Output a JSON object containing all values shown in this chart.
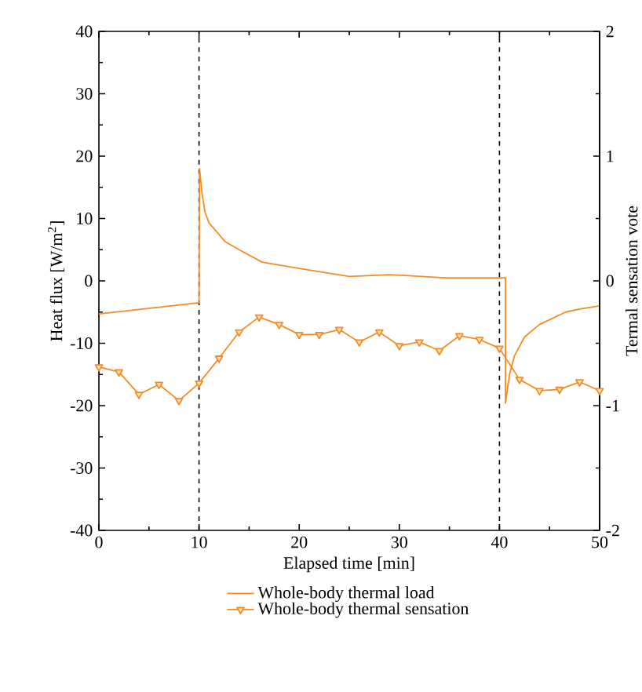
{
  "chart_data": {
    "type": "line",
    "xlabel": "Elapsed time [min]",
    "ylabel": "Heat flux [W/m$^{2}$]",
    "y2label": "Termal sensation vote",
    "xlim": [
      0,
      50
    ],
    "xticks": [
      0,
      10,
      20,
      30,
      40,
      50
    ],
    "ylim": [
      -40,
      40
    ],
    "yticks": [
      -40,
      -30,
      -20,
      -10,
      0,
      10,
      20,
      30,
      40
    ],
    "y2lim": [
      -2,
      2
    ],
    "y2ticks": [
      -2,
      -1,
      0,
      1,
      2
    ],
    "legend": "bottom",
    "grid": false,
    "ref_lines": [
      {
        "axis": "x",
        "value": 10,
        "color": "#000000",
        "line_style": "dashed"
      },
      {
        "axis": "x",
        "value": 40,
        "color": "#000000",
        "line_style": "dashed"
      }
    ],
    "series": [
      {
        "name": "Whole-body thermal load",
        "color": "#f28c28",
        "marker": "none",
        "line_style": "solid",
        "x": [
          0,
          10,
          10.05,
          10.3,
          10.6,
          11,
          12.6,
          14,
          16.3,
          20,
          25,
          29,
          34.5,
          40.6,
          40.6,
          41,
          41.5,
          42.5,
          44,
          46.6,
          48,
          50
        ],
        "values": [
          -5.3,
          -3.5,
          18,
          14,
          11,
          9.3,
          6.3,
          5,
          3,
          2,
          0.7,
          1,
          0.5,
          0.5,
          -19.6,
          -15,
          -12,
          -9,
          -7,
          -5,
          -4.5,
          -4
        ]
      },
      {
        "name": "Whole-body thermal sensation",
        "color": "#f28c28",
        "marker": "triangle",
        "line_style": "solid",
        "axis": "y2",
        "x": [
          0,
          2,
          4,
          6,
          8,
          10,
          12,
          14,
          16,
          18,
          20,
          22,
          24,
          26,
          28,
          30,
          32,
          34,
          36,
          38,
          40,
          42,
          44,
          46,
          48,
          50
        ],
        "values": [
          -0.69,
          -0.73,
          -0.91,
          -0.83,
          -0.96,
          -0.82,
          -0.62,
          -0.41,
          -0.29,
          -0.35,
          -0.43,
          -0.43,
          -0.39,
          -0.49,
          -0.41,
          -0.52,
          -0.49,
          -0.56,
          -0.44,
          -0.47,
          -0.54,
          -0.79,
          -0.88,
          -0.87,
          -0.81,
          -0.88
        ]
      }
    ]
  }
}
